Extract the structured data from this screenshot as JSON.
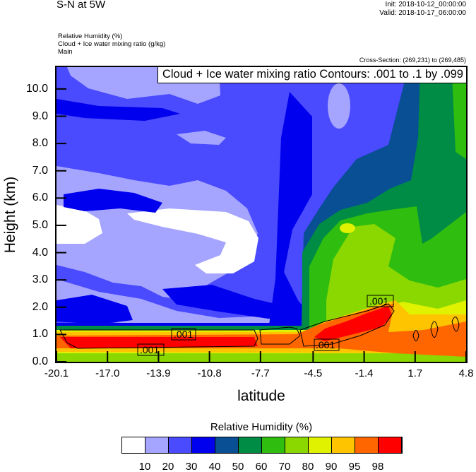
{
  "header": {
    "title": "S-N at 5W",
    "init": "Init: 2018-10-12_00:00:00",
    "valid": "Valid: 2018-10-17_06:00:00",
    "fields": [
      "Relative Humidity   (%)",
      "Cloud + Ice water mixing ratio   (g/kg)",
      "Main"
    ],
    "cross_section": "Cross-Section: (269,231) to (269,485)"
  },
  "chart_data": {
    "type": "heatmap",
    "subtype": "filled contour cross-section with line contours",
    "contour_info": "Cloud + Ice water mixing ratio Contours: .001 to .1 by .099",
    "xlabel": "latitude",
    "ylabel": "Height (km)",
    "xlim": [
      -20.1,
      4.8
    ],
    "ylim": [
      0,
      10.8
    ],
    "xticks": [
      "-20.1",
      "-17.0",
      "-13.9",
      "-10.8",
      "-7.7",
      "-4.5",
      "-1.4",
      "1.7",
      "4.8"
    ],
    "xtick_values": [
      -20.1,
      -17.0,
      -13.9,
      -10.8,
      -7.7,
      -4.5,
      -1.4,
      1.7,
      4.8
    ],
    "yticks": [
      "0.0",
      "1.0",
      "2.0",
      "3.0",
      "4.0",
      "5.0",
      "6.0",
      "7.0",
      "8.0",
      "9.0",
      "10.0"
    ],
    "ytick_values": [
      0,
      1,
      2,
      3,
      4,
      5,
      6,
      7,
      8,
      9,
      10
    ],
    "contour_labels": [
      ".001",
      ".001",
      ".001",
      ".001"
    ],
    "colorbar": {
      "title": "Relative Humidity  (%)",
      "levels": [
        "10",
        "20",
        "30",
        "40",
        "50",
        "60",
        "70",
        "80",
        "90",
        "95",
        "98"
      ],
      "colors": [
        "#ffffff",
        "#a5a5ff",
        "#4a4aff",
        "#0000ee",
        "#084f94",
        "#008c44",
        "#2fbd10",
        "#8ad800",
        "#e0f200",
        "#ffc400",
        "#ff6600",
        "#ff0000"
      ]
    }
  }
}
